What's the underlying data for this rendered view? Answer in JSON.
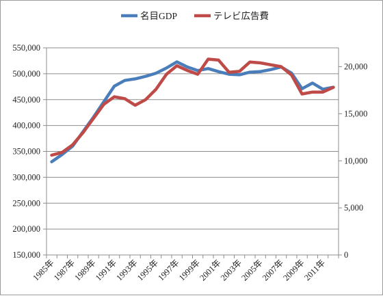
{
  "chart_data": {
    "type": "line",
    "categories": [
      "1985年",
      "1986年",
      "1987年",
      "1988年",
      "1989年",
      "1990年",
      "1991年",
      "1992年",
      "1993年",
      "1994年",
      "1995年",
      "1996年",
      "1997年",
      "1998年",
      "1999年",
      "2000年",
      "2001年",
      "2002年",
      "2003年",
      "2004年",
      "2005年",
      "2006年",
      "2007年",
      "2008年",
      "2009年",
      "2010年",
      "2011年",
      "2012年"
    ],
    "x_tick_labels": [
      "1985年",
      "1987年",
      "1989年",
      "1991年",
      "1993年",
      "1995年",
      "1997年",
      "1999年",
      "2001年",
      "2003年",
      "2005年",
      "2007年",
      "2009年",
      "2011年"
    ],
    "series": [
      {
        "name": "名目GDP",
        "axis": "left",
        "color": "#4a7ebb",
        "values": [
          330000,
          344000,
          360000,
          388000,
          416000,
          446000,
          476000,
          487000,
          490000,
          495000,
          501000,
          511000,
          523000,
          513000,
          506000,
          510000,
          504000,
          499000,
          498000,
          503000,
          504000,
          508000,
          513000,
          501000,
          471000,
          482000,
          470000,
          474000
        ]
      },
      {
        "name": "テレビ広告費",
        "axis": "right",
        "color": "#be4b48",
        "values": [
          10600,
          10900,
          11700,
          13000,
          14500,
          16000,
          16800,
          16600,
          15900,
          16500,
          17600,
          19200,
          20100,
          19600,
          19200,
          20800,
          20700,
          19400,
          19500,
          20500,
          20400,
          20200,
          20000,
          19100,
          17100,
          17300,
          17300,
          17800
        ]
      }
    ],
    "left_axis": {
      "min": 150000,
      "max": 550000,
      "ticks": [
        150000,
        200000,
        250000,
        300000,
        350000,
        400000,
        450000,
        500000,
        550000
      ],
      "tick_labels": [
        "150,000",
        "200,000",
        "250,000",
        "300,000",
        "350,000",
        "400,000",
        "450,000",
        "500,000",
        "550,000"
      ]
    },
    "right_axis": {
      "min": 0,
      "max": 22000,
      "ticks": [
        0,
        5000,
        10000,
        15000,
        20000
      ],
      "tick_labels": [
        "0",
        "5,000",
        "10,000",
        "15,000",
        "20,000"
      ]
    },
    "grid": "horizontal",
    "legend_position": "top-center",
    "title": "",
    "xlabel": "",
    "ylabel": ""
  }
}
